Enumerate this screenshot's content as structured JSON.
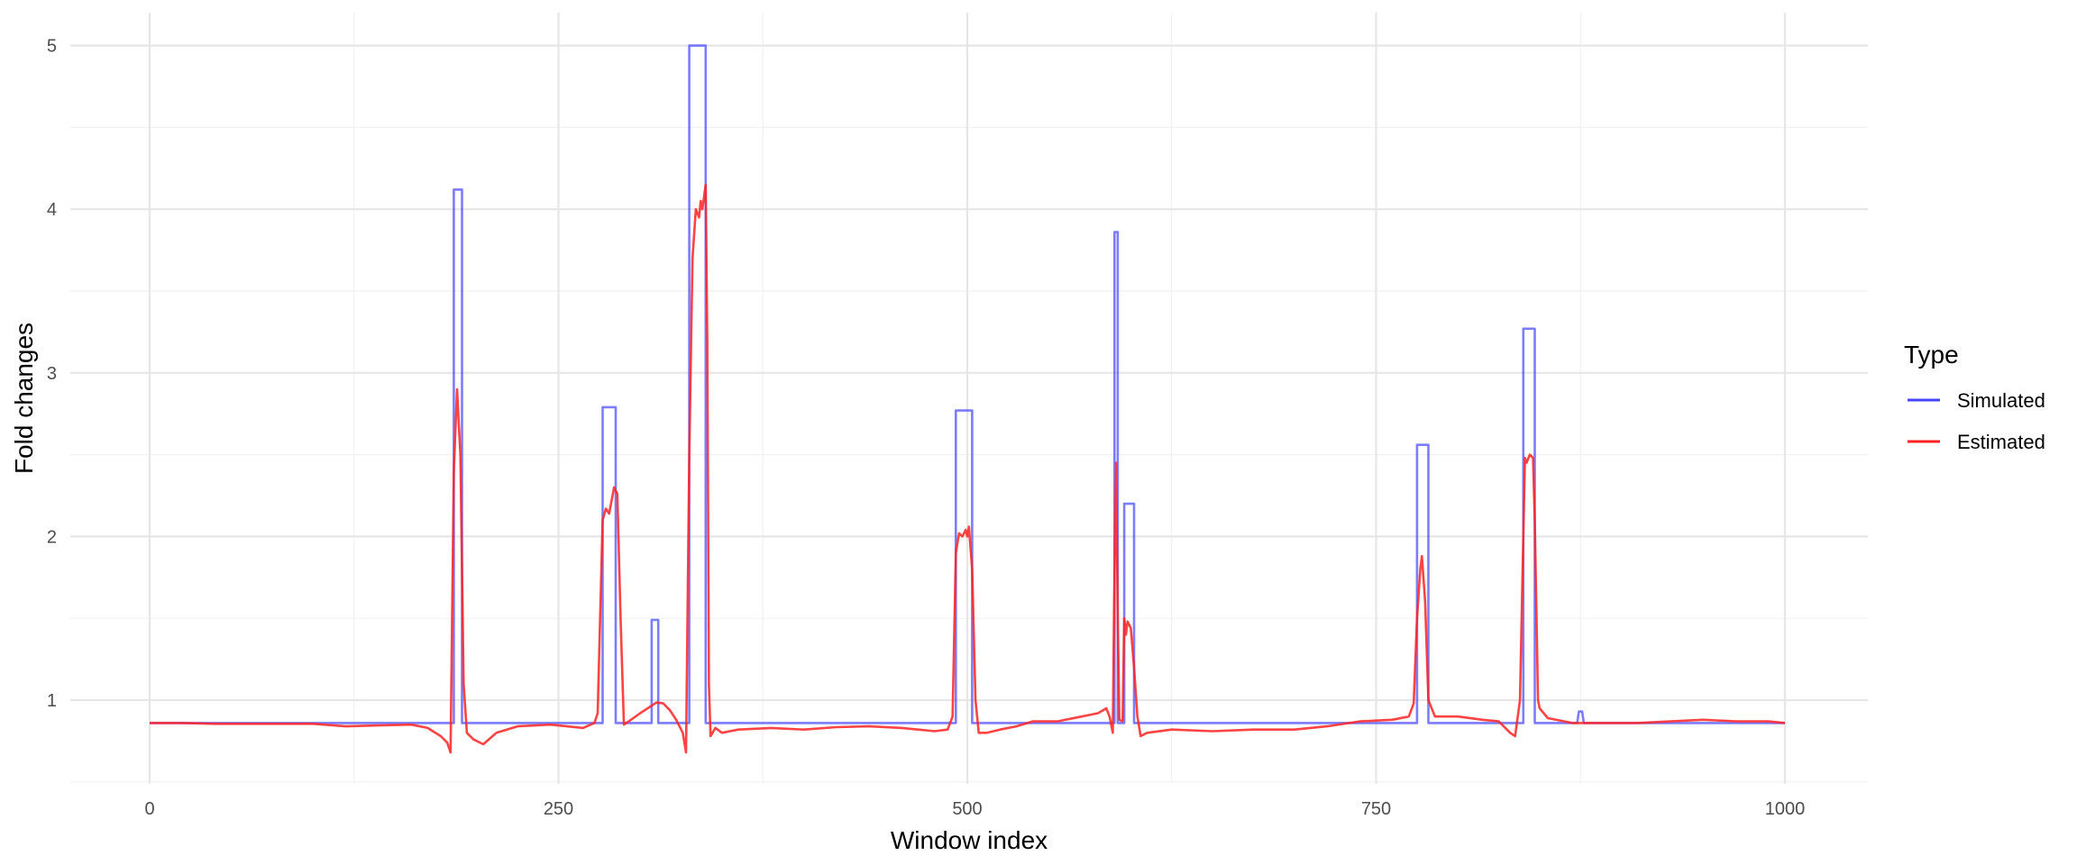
{
  "chart_data": {
    "type": "line",
    "title": "",
    "xlabel": "Window index",
    "ylabel": "Fold changes",
    "xlim": [
      0,
      1000
    ],
    "ylim": [
      0.5,
      5.2
    ],
    "xticks": [
      0,
      250,
      500,
      750,
      1000
    ],
    "yticks": [
      1,
      2,
      3,
      4,
      5
    ],
    "grid": true,
    "legend": {
      "title": "Type",
      "position": "right"
    },
    "series": [
      {
        "name": "Simulated",
        "color": "#4444ff",
        "points": [
          [
            0,
            0.86
          ],
          [
            186,
            0.86
          ],
          [
            186,
            4.12
          ],
          [
            191,
            4.12
          ],
          [
            191,
            0.86
          ],
          [
            277,
            0.86
          ],
          [
            277,
            2.79
          ],
          [
            285,
            2.79
          ],
          [
            285,
            0.86
          ],
          [
            307,
            0.86
          ],
          [
            307,
            1.49
          ],
          [
            311,
            1.49
          ],
          [
            311,
            0.86
          ],
          [
            330,
            0.86
          ],
          [
            330,
            5.0
          ],
          [
            340,
            5.0
          ],
          [
            340,
            0.86
          ],
          [
            493,
            0.86
          ],
          [
            493,
            2.77
          ],
          [
            503,
            2.77
          ],
          [
            503,
            0.86
          ],
          [
            590,
            0.86
          ],
          [
            590,
            3.86
          ],
          [
            592,
            3.86
          ],
          [
            592,
            0.86
          ],
          [
            596,
            0.86
          ],
          [
            596,
            2.2
          ],
          [
            602,
            2.2
          ],
          [
            602,
            0.86
          ],
          [
            775,
            0.86
          ],
          [
            775,
            2.56
          ],
          [
            782,
            2.56
          ],
          [
            782,
            0.86
          ],
          [
            840,
            0.86
          ],
          [
            840,
            3.27
          ],
          [
            847,
            3.27
          ],
          [
            847,
            0.86
          ],
          [
            873,
            0.86
          ],
          [
            874,
            0.93
          ],
          [
            876,
            0.93
          ],
          [
            877,
            0.86
          ],
          [
            1000,
            0.86
          ]
        ]
      },
      {
        "name": "Estimated",
        "color": "#ff2222",
        "points": [
          [
            0,
            0.86
          ],
          [
            20,
            0.86
          ],
          [
            40,
            0.855
          ],
          [
            60,
            0.855
          ],
          [
            80,
            0.855
          ],
          [
            100,
            0.855
          ],
          [
            120,
            0.84
          ],
          [
            140,
            0.845
          ],
          [
            160,
            0.85
          ],
          [
            170,
            0.83
          ],
          [
            178,
            0.78
          ],
          [
            182,
            0.74
          ],
          [
            184,
            0.68
          ],
          [
            186,
            2.4
          ],
          [
            188,
            2.9
          ],
          [
            190,
            2.5
          ],
          [
            192,
            1.1
          ],
          [
            194,
            0.8
          ],
          [
            198,
            0.76
          ],
          [
            204,
            0.73
          ],
          [
            212,
            0.8
          ],
          [
            225,
            0.84
          ],
          [
            245,
            0.85
          ],
          [
            265,
            0.83
          ],
          [
            272,
            0.86
          ],
          [
            274,
            0.92
          ],
          [
            277,
            2.1
          ],
          [
            279,
            2.17
          ],
          [
            281,
            2.14
          ],
          [
            284,
            2.3
          ],
          [
            286,
            2.26
          ],
          [
            288,
            1.5
          ],
          [
            290,
            0.85
          ],
          [
            293,
            0.87
          ],
          [
            300,
            0.92
          ],
          [
            306,
            0.96
          ],
          [
            310,
            0.985
          ],
          [
            314,
            0.98
          ],
          [
            318,
            0.94
          ],
          [
            322,
            0.88
          ],
          [
            326,
            0.8
          ],
          [
            328,
            0.68
          ],
          [
            330,
            2.5
          ],
          [
            332,
            3.7
          ],
          [
            334,
            4.0
          ],
          [
            336,
            3.95
          ],
          [
            337,
            4.05
          ],
          [
            338,
            4.0
          ],
          [
            340,
            4.15
          ],
          [
            341,
            3.2
          ],
          [
            342,
            1.1
          ],
          [
            343,
            0.78
          ],
          [
            346,
            0.83
          ],
          [
            350,
            0.8
          ],
          [
            360,
            0.82
          ],
          [
            380,
            0.83
          ],
          [
            400,
            0.82
          ],
          [
            420,
            0.835
          ],
          [
            440,
            0.84
          ],
          [
            460,
            0.83
          ],
          [
            480,
            0.81
          ],
          [
            488,
            0.82
          ],
          [
            491,
            0.9
          ],
          [
            493,
            1.9
          ],
          [
            495,
            2.02
          ],
          [
            497,
            2.0
          ],
          [
            499,
            2.04
          ],
          [
            500,
            2.0
          ],
          [
            501,
            2.06
          ],
          [
            503,
            1.8
          ],
          [
            505,
            1.0
          ],
          [
            507,
            0.8
          ],
          [
            512,
            0.8
          ],
          [
            520,
            0.82
          ],
          [
            530,
            0.84
          ],
          [
            540,
            0.87
          ],
          [
            555,
            0.87
          ],
          [
            570,
            0.9
          ],
          [
            580,
            0.92
          ],
          [
            585,
            0.95
          ],
          [
            587,
            0.9
          ],
          [
            589,
            0.8
          ],
          [
            590,
            1.8
          ],
          [
            591,
            2.45
          ],
          [
            592,
            1.5
          ],
          [
            593,
            0.88
          ],
          [
            595,
            0.87
          ],
          [
            596,
            1.5
          ],
          [
            597,
            1.4
          ],
          [
            598,
            1.48
          ],
          [
            600,
            1.44
          ],
          [
            602,
            1.2
          ],
          [
            604,
            0.9
          ],
          [
            606,
            0.78
          ],
          [
            610,
            0.8
          ],
          [
            625,
            0.82
          ],
          [
            650,
            0.81
          ],
          [
            675,
            0.82
          ],
          [
            700,
            0.82
          ],
          [
            720,
            0.84
          ],
          [
            740,
            0.87
          ],
          [
            760,
            0.88
          ],
          [
            770,
            0.9
          ],
          [
            773,
            0.98
          ],
          [
            775,
            1.5
          ],
          [
            777,
            1.8
          ],
          [
            778,
            1.88
          ],
          [
            780,
            1.6
          ],
          [
            782,
            1.0
          ],
          [
            786,
            0.9
          ],
          [
            800,
            0.9
          ],
          [
            815,
            0.88
          ],
          [
            825,
            0.87
          ],
          [
            832,
            0.8
          ],
          [
            835,
            0.78
          ],
          [
            838,
            1.0
          ],
          [
            840,
            2.0
          ],
          [
            841,
            2.48
          ],
          [
            842,
            2.45
          ],
          [
            844,
            2.5
          ],
          [
            846,
            2.48
          ],
          [
            847,
            2.1
          ],
          [
            849,
            1.0
          ],
          [
            850,
            0.95
          ],
          [
            855,
            0.89
          ],
          [
            870,
            0.86
          ],
          [
            890,
            0.86
          ],
          [
            910,
            0.86
          ],
          [
            930,
            0.87
          ],
          [
            950,
            0.88
          ],
          [
            970,
            0.87
          ],
          [
            990,
            0.87
          ],
          [
            1000,
            0.86
          ]
        ]
      }
    ]
  }
}
